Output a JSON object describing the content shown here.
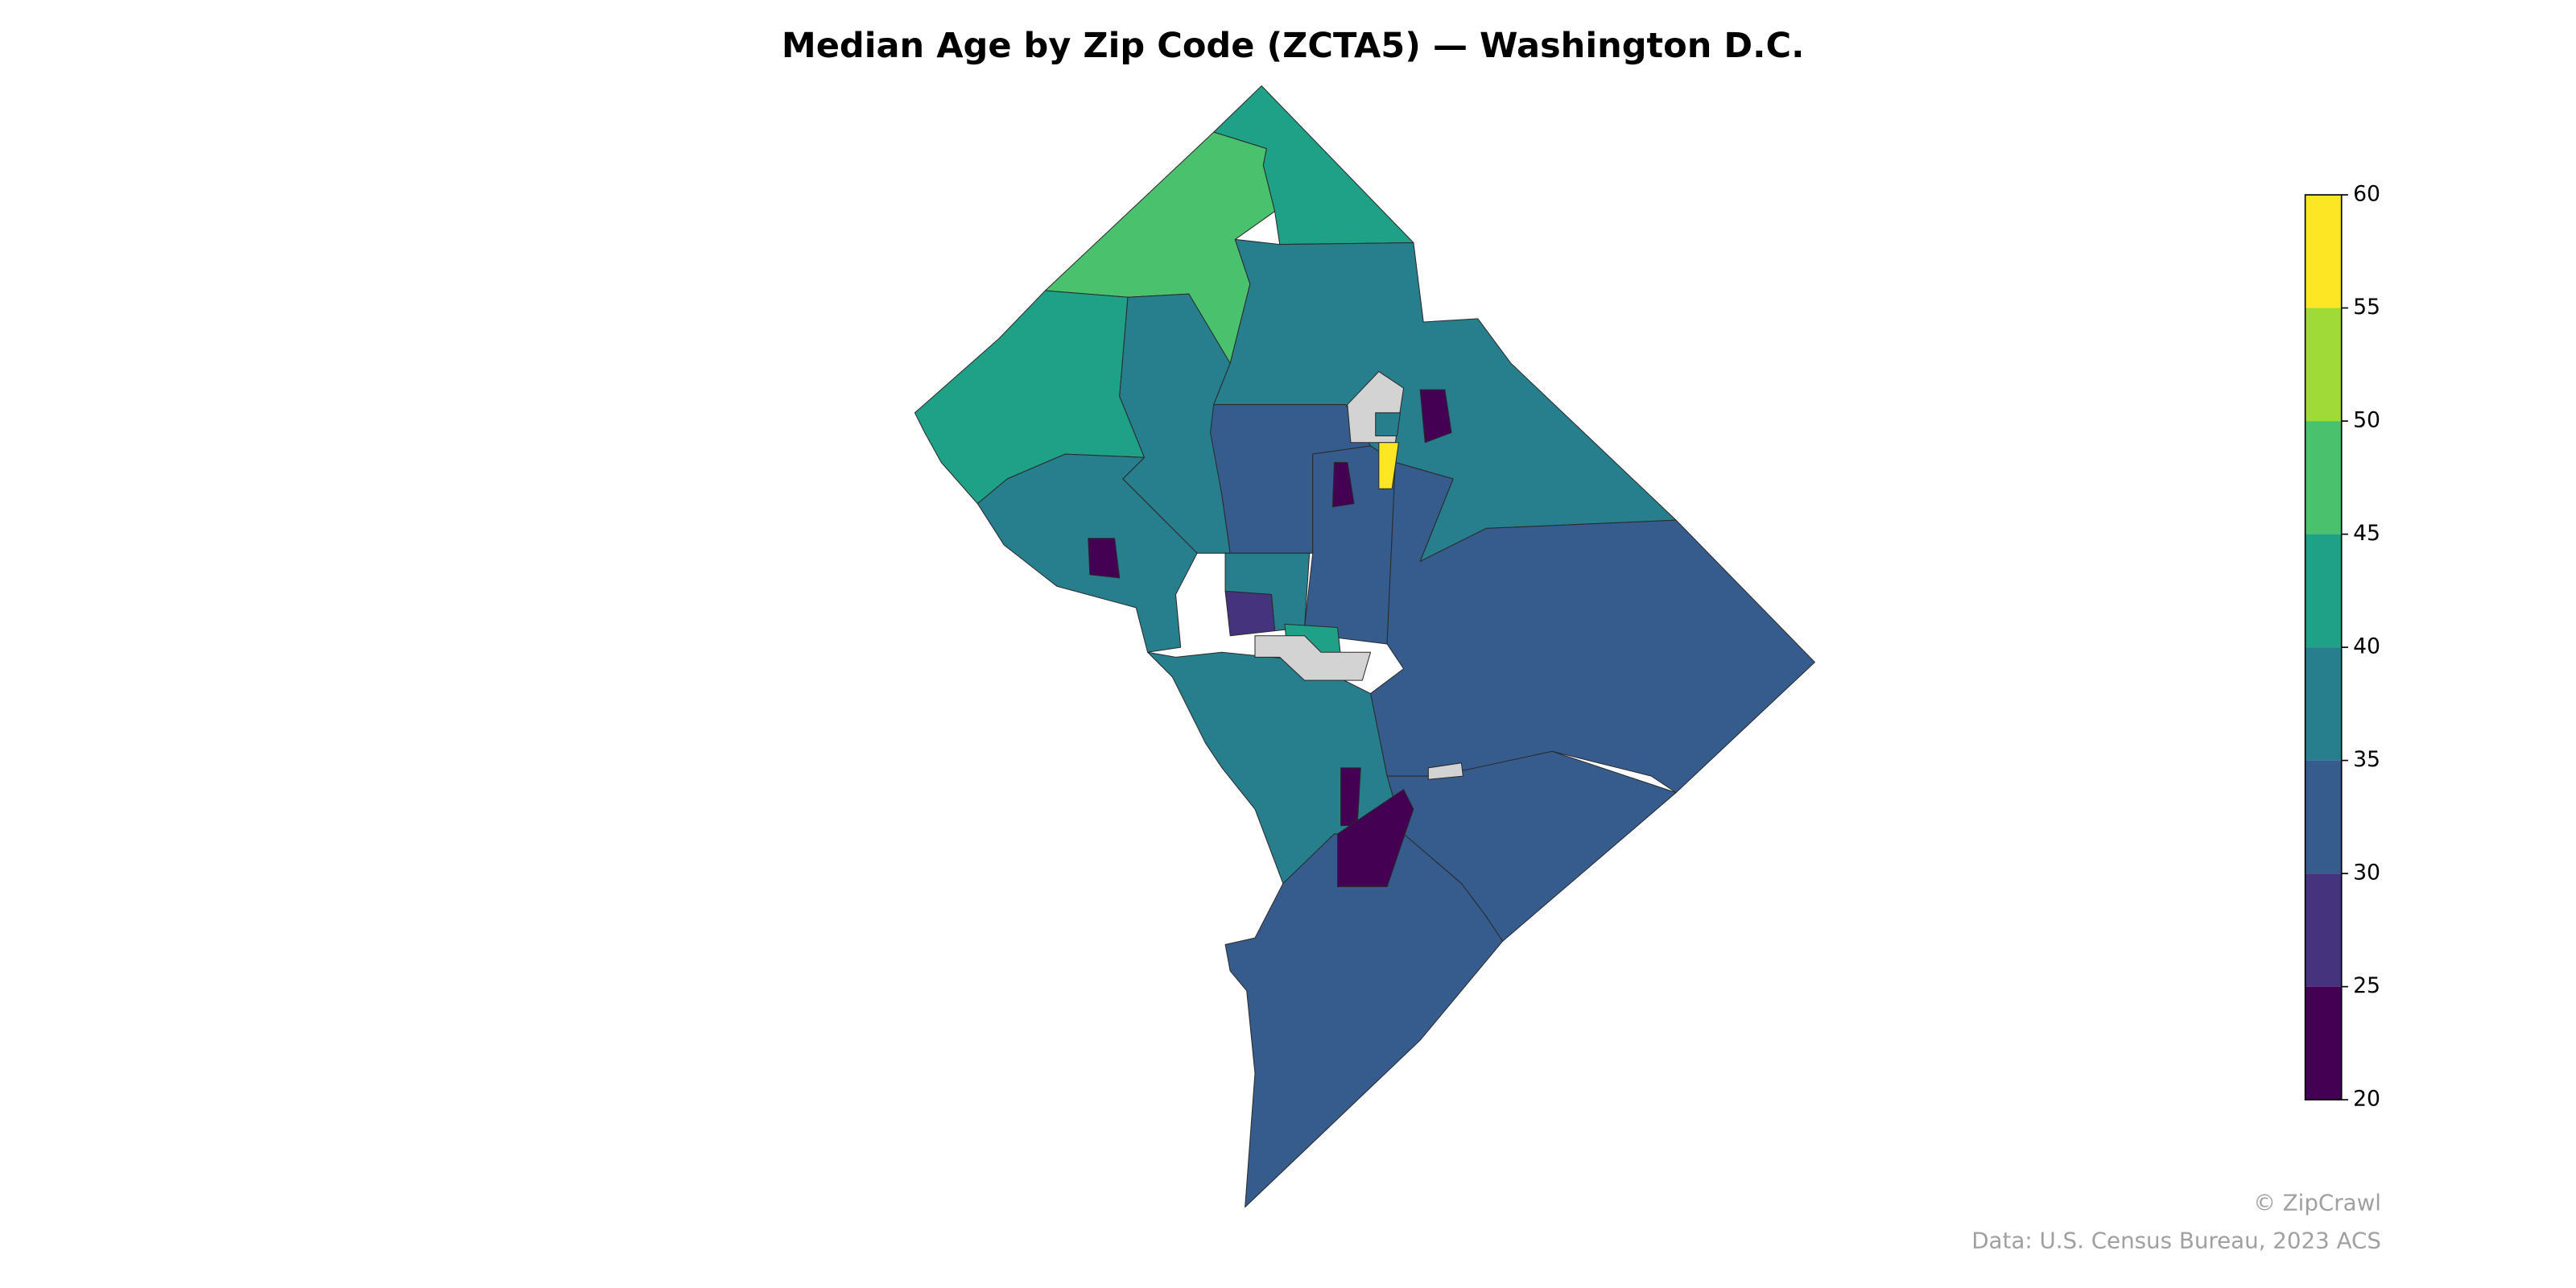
{
  "chart_data": {
    "type": "choropleth",
    "title": "Median Age by Zip Code (ZCTA5) — Washington D.C.",
    "regions": [
      {
        "value": 42
      },
      {
        "value": 47
      },
      {
        "value": 42
      },
      {
        "value": 37
      },
      {
        "value": 37
      },
      {
        "value": 38
      },
      {
        "value": 33
      },
      {
        "value": 33
      },
      {
        "value": 33
      },
      {
        "value": 33
      },
      {
        "value": 33
      },
      {
        "value": 37
      },
      {
        "value": 37
      },
      {
        "value": 28
      },
      {
        "value": 42
      },
      {
        "value": null
      },
      {
        "value": null
      },
      {
        "value": null
      },
      {
        "value": 22
      },
      {
        "value": 22
      },
      {
        "value": 22
      },
      {
        "value": 22
      },
      {
        "value": 22
      },
      {
        "value": 58
      },
      {
        "value": 38
      }
    ],
    "missing_color": "#d3d3d3",
    "colorbar": {
      "lim": [
        20,
        60
      ],
      "ticks": [
        20,
        25,
        30,
        35,
        40,
        45,
        50,
        55,
        60
      ],
      "colors": [
        "#440154",
        "#46337e",
        "#365c8d",
        "#277f8e",
        "#1fa187",
        "#4ac16d",
        "#a0da39",
        "#fde725"
      ]
    },
    "credit": "© ZipCrawl",
    "source": "Data: U.S. Census Bureau, 2023 ACS"
  }
}
